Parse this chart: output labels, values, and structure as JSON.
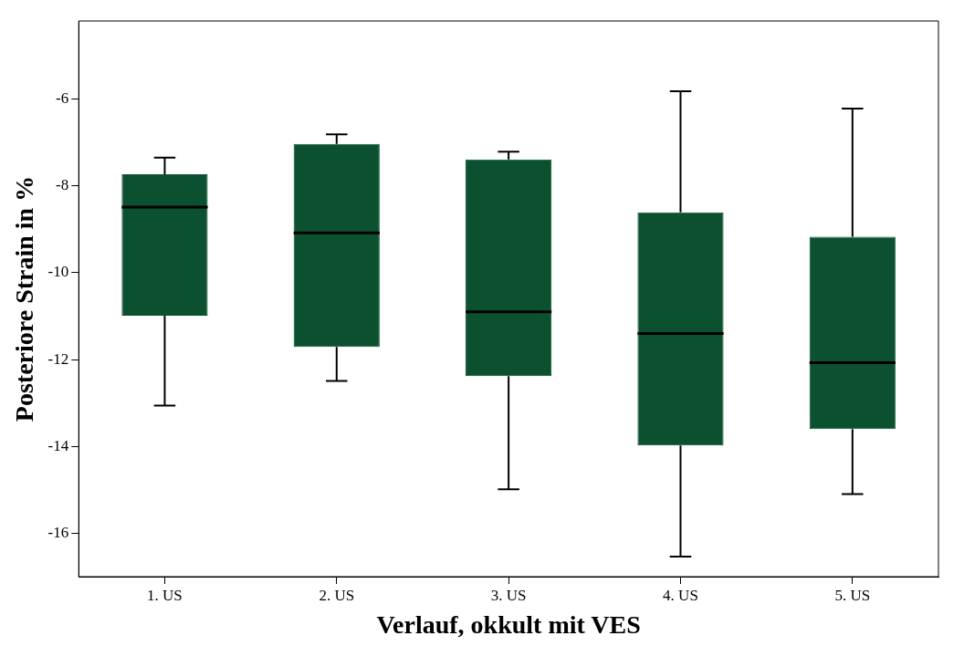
{
  "chart_data": {
    "type": "box",
    "xlabel": "Verlauf, okkult mit VES",
    "ylabel": "Posteriore Strain in %",
    "categories": [
      "1. US",
      "2. US",
      "3. US",
      "4. US",
      "5. US"
    ],
    "boxes": [
      {
        "low": -13.06,
        "q1": -10.99,
        "median": -8.49,
        "q3": -7.73,
        "high": -7.35
      },
      {
        "low": -12.49,
        "q1": -11.71,
        "median": -9.08,
        "q3": -7.03,
        "high": -6.81
      },
      {
        "low": -14.99,
        "q1": -12.38,
        "median": -10.9,
        "q3": -7.39,
        "high": -7.21
      },
      {
        "low": -16.54,
        "q1": -13.98,
        "median": -11.4,
        "q3": -8.61,
        "high": -5.82
      },
      {
        "low": -15.1,
        "q1": -13.6,
        "median": -12.07,
        "q3": -9.17,
        "high": -6.22
      }
    ],
    "color": "#0b5130",
    "ylim": [
      -17,
      -4.2
    ],
    "yticks": [
      -16,
      -14,
      -12,
      -10,
      -8,
      -6
    ],
    "grid": false
  }
}
